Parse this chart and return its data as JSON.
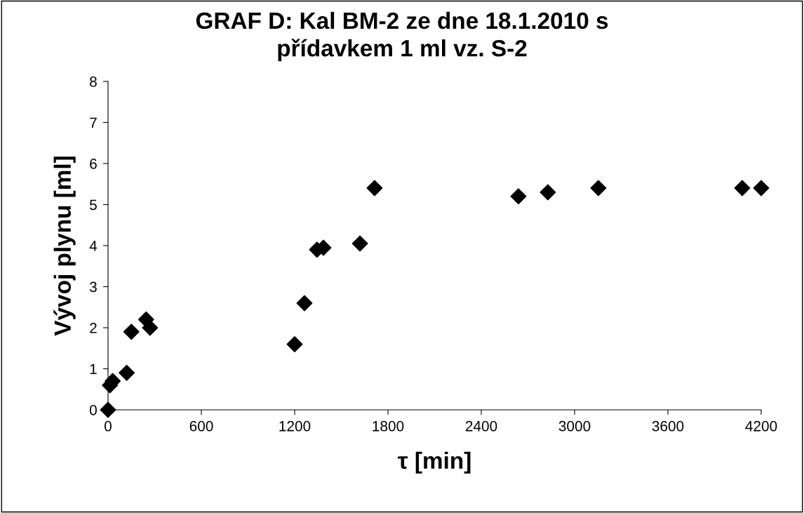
{
  "chart_data": {
    "type": "scatter",
    "title": "GRAF D: Kal BM-2 ze dne 18.1.2010 s\npřídavkem 1 ml vz. S-2",
    "xlabel": "τ [min]",
    "ylabel": "Vývoj plynu [ml]",
    "x": [
      0,
      12,
      30,
      120,
      150,
      245,
      270,
      1200,
      1263,
      1344,
      1385,
      1620,
      1714,
      2639,
      2828,
      3153,
      4078,
      4200
    ],
    "values": [
      0,
      0.6,
      0.7,
      0.9,
      1.9,
      2.2,
      2.0,
      1.6,
      2.6,
      3.9,
      3.95,
      4.05,
      5.4,
      5.2,
      5.3,
      5.4,
      5.4,
      5.4
    ],
    "color": "#000000",
    "marker": "diamond",
    "xlim": [
      0,
      4200
    ],
    "xticks": [
      0,
      600,
      1200,
      1800,
      2400,
      3000,
      3600,
      4200
    ],
    "ylim": [
      0,
      8
    ],
    "yticks": [
      0,
      1,
      2,
      3,
      4,
      5,
      6,
      7,
      8
    ],
    "grid": false,
    "legend": false
  }
}
